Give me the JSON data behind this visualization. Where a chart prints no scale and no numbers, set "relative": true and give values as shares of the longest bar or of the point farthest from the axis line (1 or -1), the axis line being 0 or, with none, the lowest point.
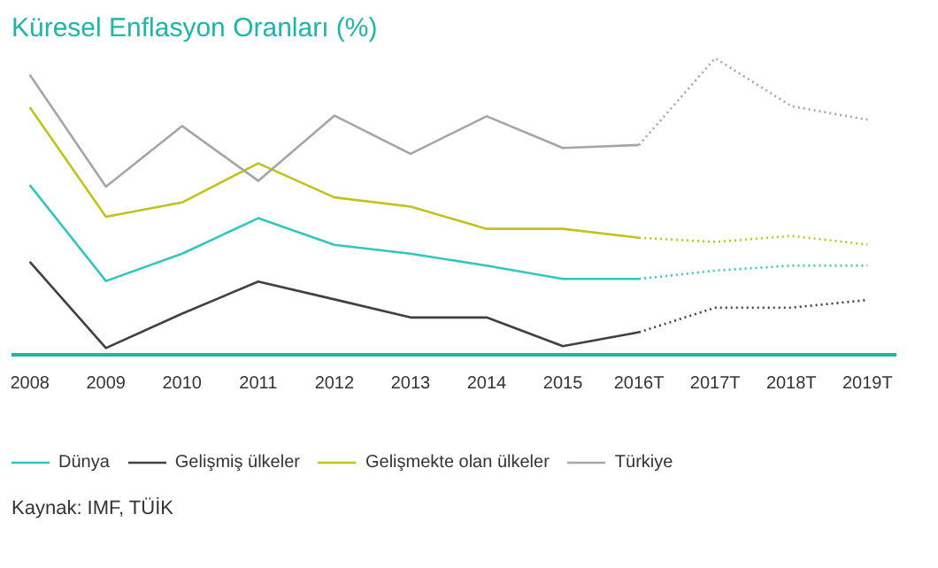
{
  "chart_data": {
    "type": "line",
    "title": "Küresel Enflasyon Oranları (%)",
    "relative": true,
    "categories": [
      "2008",
      "2009",
      "2010",
      "2011",
      "2012",
      "2013",
      "2014",
      "2015",
      "2016T",
      "2017T",
      "2018T",
      "2019T"
    ],
    "series": [
      {
        "name": "Dünya",
        "color": "#33c6bf",
        "line_style": "solid",
        "values": [
          0.572,
          0.248,
          0.34,
          0.46,
          0.37,
          0.34,
          0.3,
          0.255,
          0.255,
          null,
          null,
          null
        ]
      },
      {
        "name": "Gelişmiş ülkeler",
        "color": "#404040",
        "line_style": "solid",
        "values": [
          0.313,
          0.022,
          0.138,
          0.246,
          0.186,
          0.125,
          0.125,
          0.028,
          0.075,
          null,
          null,
          null
        ]
      },
      {
        "name": "Gelişmekte olan ülkeler",
        "color": "#c2c21a",
        "line_style": "solid",
        "values": [
          0.834,
          0.465,
          0.513,
          0.645,
          0.53,
          0.499,
          0.424,
          0.424,
          0.394,
          null,
          null,
          null
        ]
      },
      {
        "name": "Türkiye",
        "color": "#a6a6a6",
        "line_style": "solid",
        "values": [
          0.944,
          0.566,
          0.771,
          0.586,
          0.806,
          0.677,
          0.804,
          0.697,
          0.707,
          null,
          null,
          null
        ]
      },
      {
        "color": "#33c6bf",
        "line_style": "dotted",
        "values": [
          null,
          null,
          null,
          null,
          null,
          null,
          null,
          null,
          0.255,
          0.283,
          0.3,
          0.3
        ]
      },
      {
        "color": "#404040",
        "line_style": "dotted",
        "values": [
          null,
          null,
          null,
          null,
          null,
          null,
          null,
          null,
          0.075,
          0.158,
          0.158,
          0.184
        ]
      },
      {
        "color": "#c2c21a",
        "line_style": "dotted",
        "values": [
          null,
          null,
          null,
          null,
          null,
          null,
          null,
          null,
          0.394,
          0.38,
          0.4,
          0.371
        ]
      },
      {
        "color": "#a6a6a6",
        "line_style": "dotted",
        "values": [
          null,
          null,
          null,
          null,
          null,
          null,
          null,
          null,
          0.707,
          1,
          0.838,
          0.792
        ]
      }
    ],
    "legend": "bottom",
    "grid": false,
    "annotations": [
      "Kaynak: IMF, TÜİK"
    ]
  }
}
